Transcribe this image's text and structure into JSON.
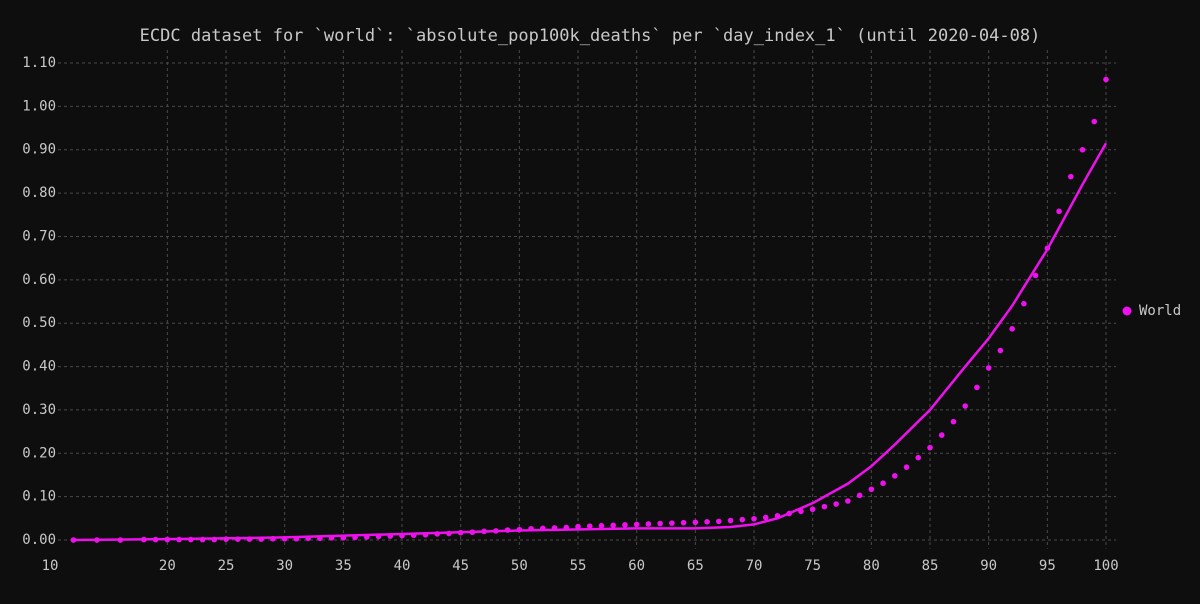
{
  "chart_data": {
    "type": "scatter",
    "title": "ECDC dataset for `world`: `absolute_pop100k_deaths` per `day_index_1` (until 2020-04-08)",
    "x": [
      12,
      14,
      16,
      18,
      19,
      20,
      21,
      22,
      23,
      24,
      25,
      26,
      27,
      28,
      29,
      30,
      31,
      32,
      33,
      34,
      35,
      36,
      37,
      38,
      39,
      40,
      41,
      42,
      43,
      44,
      45,
      46,
      47,
      48,
      49,
      50,
      51,
      52,
      53,
      54,
      55,
      56,
      57,
      58,
      59,
      60,
      61,
      62,
      63,
      64,
      65,
      66,
      67,
      68,
      69,
      70,
      71,
      72,
      73,
      74,
      75,
      76,
      77,
      78,
      79,
      80,
      81,
      82,
      83,
      84,
      85,
      86,
      87,
      88,
      89,
      90,
      91,
      92,
      93,
      94,
      95,
      96,
      97,
      98,
      99,
      100
    ],
    "series": [
      {
        "name": "World",
        "color": "#ee11ee",
        "values": [
          0,
          0,
          0,
          0.001,
          0.001,
          0.001,
          0.001,
          0.001,
          0.001,
          0.001,
          0.002,
          0.002,
          0.002,
          0.002,
          0.003,
          0.003,
          0.003,
          0.004,
          0.004,
          0.005,
          0.005,
          0.006,
          0.007,
          0.008,
          0.009,
          0.01,
          0.011,
          0.012,
          0.014,
          0.015,
          0.017,
          0.018,
          0.02,
          0.021,
          0.023,
          0.024,
          0.026,
          0.027,
          0.028,
          0.029,
          0.031,
          0.032,
          0.033,
          0.034,
          0.035,
          0.036,
          0.037,
          0.038,
          0.039,
          0.04,
          0.041,
          0.042,
          0.043,
          0.045,
          0.047,
          0.049,
          0.052,
          0.056,
          0.061,
          0.066,
          0.071,
          0.077,
          0.083,
          0.09,
          0.103,
          0.117,
          0.131,
          0.148,
          0.168,
          0.19,
          0.213,
          0.242,
          0.273,
          0.309,
          0.352,
          0.397,
          0.437,
          0.487,
          0.545,
          0.61,
          0.673,
          0.758,
          0.838,
          0.9,
          0.965,
          1.062
        ]
      }
    ],
    "fit_line": {
      "color": "#ee11ee",
      "x": [
        12,
        20,
        30,
        40,
        50,
        60,
        65,
        68,
        70,
        72,
        75,
        78,
        80,
        82,
        85,
        88,
        90,
        92,
        95,
        98,
        100
      ],
      "values": [
        0,
        0.002,
        0.006,
        0.014,
        0.022,
        0.027,
        0.027,
        0.03,
        0.036,
        0.05,
        0.085,
        0.13,
        0.17,
        0.22,
        0.3,
        0.4,
        0.465,
        0.54,
        0.67,
        0.82,
        0.915
      ]
    },
    "xlim": [
      10,
      100
    ],
    "ylim": [
      -0.02,
      1.13
    ],
    "xticks": [
      10,
      20,
      25,
      30,
      35,
      40,
      45,
      50,
      55,
      60,
      65,
      70,
      75,
      80,
      85,
      90,
      95,
      100
    ],
    "yticks": [
      {
        "value": 0,
        "label": "0.00"
      },
      {
        "value": 0.1,
        "label": "0.10"
      },
      {
        "value": 0.2,
        "label": "0.20"
      },
      {
        "value": 0.3,
        "label": "0.30"
      },
      {
        "value": 0.4,
        "label": "0.40"
      },
      {
        "value": 0.5,
        "label": "0.50"
      },
      {
        "value": 0.6,
        "label": "0.60"
      },
      {
        "value": 0.7,
        "label": "0.70"
      },
      {
        "value": 0.8,
        "label": "0.80"
      },
      {
        "value": 0.9,
        "label": "0.90"
      },
      {
        "value": 1,
        "label": "1.00"
      },
      {
        "value": 1.1,
        "label": "1.10"
      }
    ],
    "grid": true,
    "legend": "right"
  }
}
